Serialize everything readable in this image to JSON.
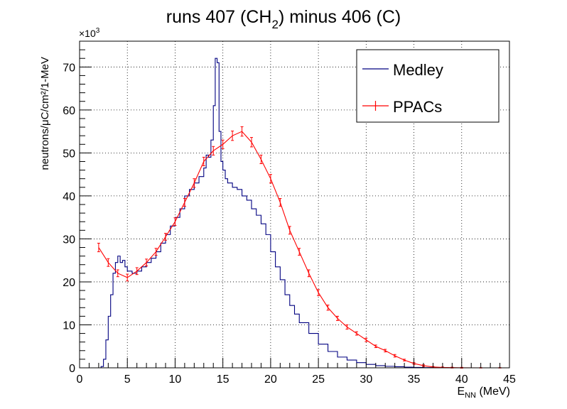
{
  "chart_data": {
    "type": "line",
    "title_main": "runs 407 (CH",
    "title_sub": "2",
    "title_rest": ") minus 406 (C)",
    "ylabel": "neutrons/μC/cm²/1-MeV",
    "xlabel_main": "E",
    "xlabel_sub": "NN",
    "xlabel_rest": " (MeV)",
    "y_multiplier_base": "×10",
    "y_multiplier_exp": "3",
    "xlim": [
      0,
      45
    ],
    "ylim": [
      0,
      76
    ],
    "x_ticks": [
      "0",
      "5",
      "10",
      "15",
      "20",
      "25",
      "30",
      "35",
      "40",
      "45"
    ],
    "y_ticks": [
      "0",
      "10",
      "20",
      "30",
      "40",
      "50",
      "60",
      "70"
    ],
    "grid": true,
    "legend_position": "top-right",
    "colors": {
      "medley": "#000080",
      "ppacs": "#ff0000"
    },
    "series": [
      {
        "name": "Medley",
        "style": "step",
        "x": [
          2.0,
          2.25,
          2.5,
          2.75,
          3.0,
          3.25,
          3.5,
          3.75,
          4.0,
          4.25,
          4.5,
          4.75,
          5.0,
          5.5,
          6.0,
          6.5,
          7.0,
          7.5,
          8.0,
          8.5,
          9.0,
          9.5,
          10.0,
          10.5,
          11.0,
          11.5,
          12.0,
          12.5,
          13.0,
          13.25,
          13.5,
          13.75,
          14.0,
          14.2,
          14.4,
          14.6,
          14.8,
          15.0,
          15.25,
          15.5,
          16.0,
          16.5,
          17.0,
          17.5,
          18.0,
          18.5,
          19.0,
          19.5,
          20.0,
          20.5,
          21.0,
          21.5,
          22.0,
          22.5,
          23.0,
          24.0,
          25.0,
          26.0,
          27.0,
          28.0,
          29.0,
          30.0,
          31.0,
          32.0,
          33.0,
          34.0,
          35.0,
          36.0,
          37.0,
          38.0,
          45.0
        ],
        "y": [
          0.0,
          0.3,
          2.0,
          6.5,
          12.0,
          17.0,
          22.0,
          24.5,
          26.0,
          24.5,
          25.0,
          23.5,
          22.5,
          22.0,
          22.5,
          23.5,
          24.5,
          25.5,
          27.0,
          29.0,
          31.0,
          33.0,
          35.0,
          37.0,
          40.0,
          41.5,
          43.0,
          44.5,
          46.5,
          49.5,
          49.0,
          53.0,
          61.0,
          72.0,
          71.0,
          55.0,
          48.0,
          46.0,
          44.0,
          43.0,
          42.0,
          41.5,
          40.0,
          39.0,
          37.0,
          35.5,
          33.5,
          31.0,
          27.0,
          23.5,
          20.5,
          17.0,
          14.5,
          12.5,
          10.5,
          8.0,
          5.5,
          3.8,
          2.5,
          1.8,
          1.2,
          0.8,
          0.5,
          0.35,
          0.25,
          0.15,
          0.1,
          0.05,
          0.02,
          0.0,
          0.0
        ]
      },
      {
        "name": "PPACs",
        "style": "line-errorbars",
        "x": [
          2.0,
          3.0,
          4.0,
          5.0,
          6.0,
          7.0,
          8.0,
          9.0,
          10.0,
          11.0,
          12.0,
          13.0,
          14.0,
          15.0,
          16.0,
          17.0,
          18.0,
          19.0,
          20.0,
          21.0,
          22.0,
          23.0,
          24.0,
          25.0,
          26.0,
          27.0,
          28.0,
          29.0,
          30.0,
          31.0,
          32.0,
          33.0,
          34.0,
          35.0,
          36.0,
          37.0,
          38.0,
          39.0,
          40.0,
          42.0,
          44.0
        ],
        "y": [
          28.0,
          24.5,
          22.0,
          21.0,
          22.5,
          24.5,
          27.0,
          30.5,
          34.0,
          38.5,
          43.0,
          48.0,
          50.5,
          52.0,
          54.0,
          55.0,
          52.5,
          48.5,
          44.0,
          38.5,
          32.0,
          27.0,
          22.0,
          17.5,
          14.0,
          11.5,
          9.5,
          8.0,
          6.5,
          5.0,
          4.0,
          2.8,
          1.8,
          1.0,
          0.5,
          0.2,
          0.1,
          0.05,
          0.02,
          0.0,
          0.0
        ],
        "errors": [
          1.0,
          0.9,
          0.8,
          0.8,
          0.8,
          0.8,
          0.8,
          0.8,
          0.9,
          0.9,
          1.0,
          1.0,
          1.0,
          1.0,
          1.1,
          1.1,
          1.1,
          1.0,
          1.0,
          0.9,
          0.9,
          0.8,
          0.8,
          0.7,
          0.6,
          0.5,
          0.5,
          0.4,
          0.4,
          0.3,
          0.3,
          0.3,
          0.2,
          0.2,
          0.2,
          0.1,
          0.1,
          0.1,
          0.1,
          0.05,
          0.05
        ]
      }
    ]
  }
}
